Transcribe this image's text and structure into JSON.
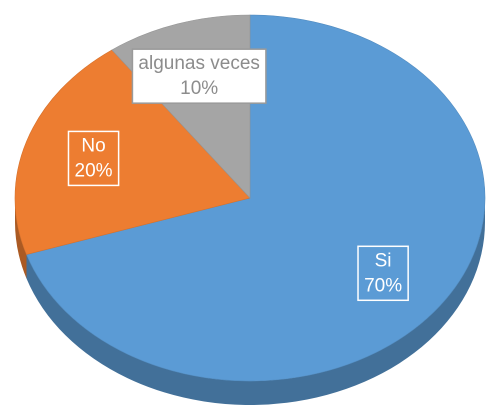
{
  "chart_data": {
    "type": "pie",
    "categories": [
      "Si",
      "No",
      "algunas veces"
    ],
    "values": [
      70,
      20,
      10
    ],
    "value_labels": [
      "70%",
      "20%",
      "10%"
    ],
    "colors": [
      "#5b9bd5",
      "#ed7d31",
      "#a5a5a5"
    ]
  }
}
